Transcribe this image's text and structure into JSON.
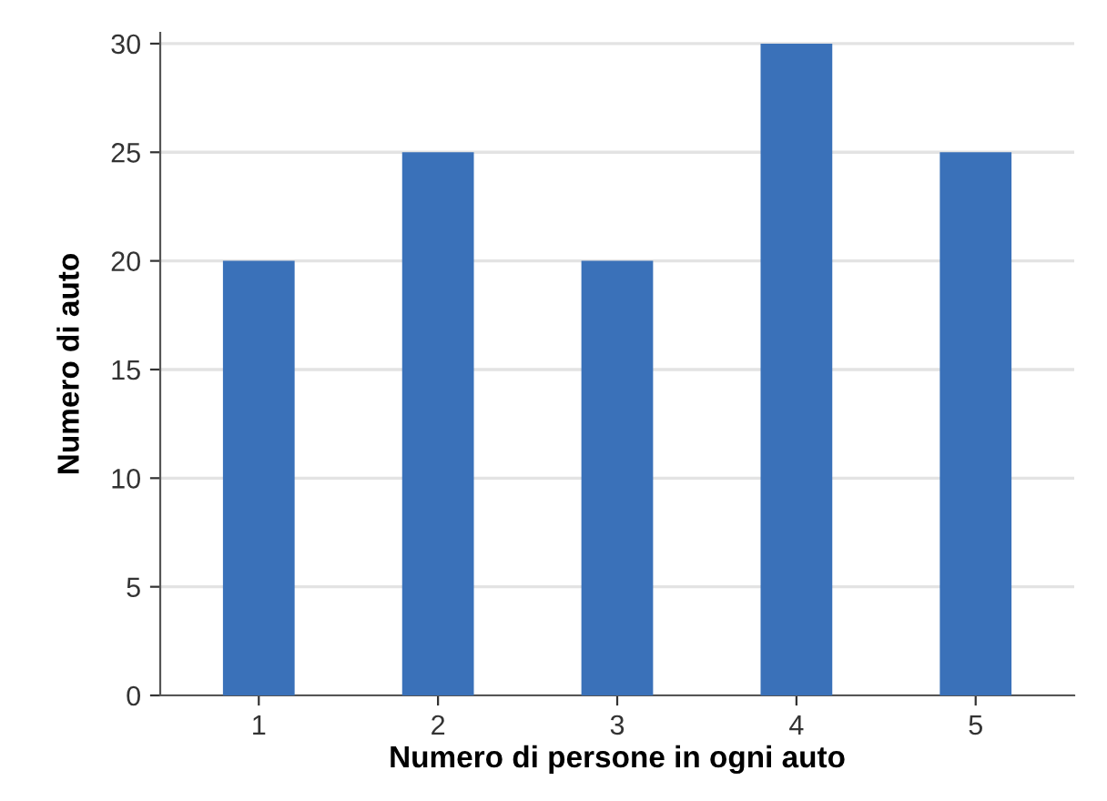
{
  "chart_data": {
    "type": "bar",
    "xlabel": "Numero di persone in ogni auto",
    "ylabel": "Numero di auto",
    "categories": [
      "1",
      "2",
      "3",
      "4",
      "5"
    ],
    "values": [
      20,
      25,
      20,
      30,
      25
    ],
    "color": "#3a71b9",
    "ylim": [
      0,
      30.5
    ],
    "yticks": [
      0,
      5,
      10,
      15,
      20,
      25,
      30
    ],
    "grid": "y",
    "legend": false
  }
}
